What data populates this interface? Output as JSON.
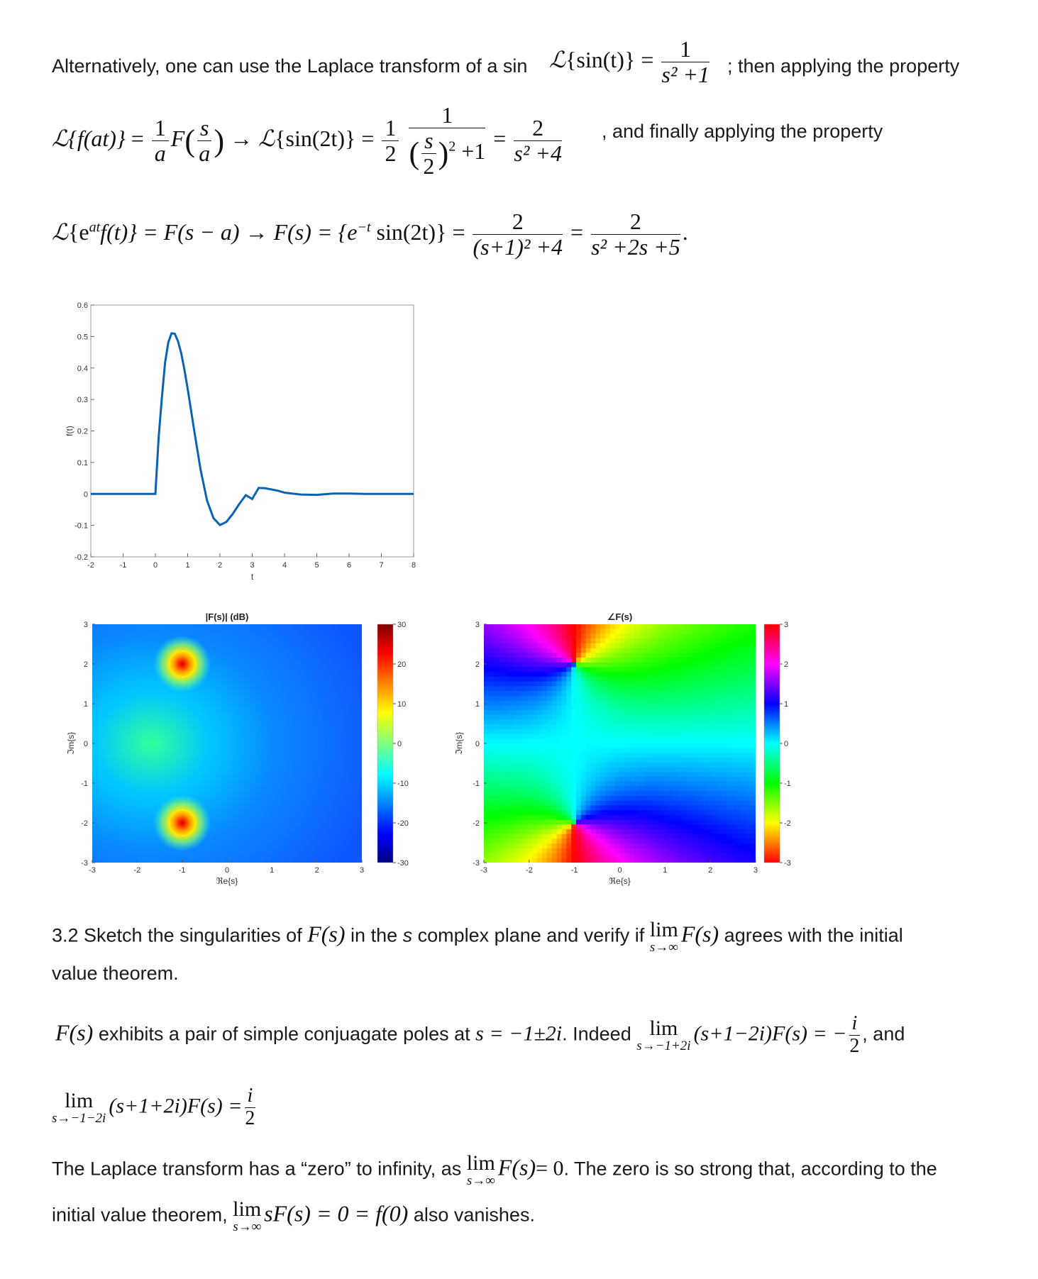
{
  "paragraph1": {
    "lead": "Alternatively, one can use the Laplace transform of a sin",
    "after": "; then applying the property",
    "after2": ", and finally applying the property"
  },
  "section": {
    "heading_a": "3.2 Sketch the singularities of",
    "heading_b": "in the",
    "heading_s": "s",
    "heading_c": "complex plane and verify if",
    "heading_d": "agrees with the initial",
    "heading_e": "value theorem."
  },
  "poles_para": {
    "a": "exhibits a pair of simple conjuagate poles at",
    "b": ". Indeed",
    "c": ", and"
  },
  "zero_para": {
    "a": "The Laplace transform has a “zero” to infinity, as",
    "b": ". The zero is so strong that, according to the",
    "c": "initial value theorem,",
    "d": "also vanishes."
  },
  "math": {
    "L": "ℒ",
    "sin_t": "{sin(t)}",
    "eq": "=",
    "one": "1",
    "two": "2",
    "s2p1": "s² +1",
    "s2p4": "s² +4",
    "fat": "{f(at)}",
    "a": "a",
    "s": "s",
    "F": "F",
    "arrow": "→",
    "sin_2t": "{sin(2t)}",
    "s_over_2_sq": "+1",
    "eat": "{e",
    "at": "at",
    "ft_close": "f(t)} = F(s − a) → F(s) = {e",
    "minus_t": "−t",
    "sin2t_close": "sin(2t)} =",
    "den1": "(s+1)² +4",
    "den2": "s² +2s +5",
    "period": ".",
    "Fs": "F(s)",
    "lim": "lim",
    "s_inf": "s→∞",
    "poles": "s = −1±2i",
    "sub_p": "s→−1+2i",
    "sub_m": "s→−1−2i",
    "lim1_expr": "(s+1−2i)F(s) = −",
    "lim2_expr": "(s+1+2i)F(s) =",
    "i": "i",
    "eq0": "= 0",
    "sF": "sF(s) = 0 = f(0)"
  },
  "chart_data": [
    {
      "type": "line",
      "title": "",
      "xlabel": "t",
      "ylabel": "f(t)",
      "xlim": [
        -2,
        8
      ],
      "ylim": [
        -0.2,
        0.6
      ],
      "xticks": [
        "-2",
        "-1",
        "0",
        "1",
        "2",
        "3",
        "4",
        "5",
        "6",
        "7",
        "8"
      ],
      "yticks": [
        "-0.2",
        "-0.1",
        "0",
        "0.1",
        "0.2",
        "0.3",
        "0.4",
        "0.5",
        "0.6"
      ],
      "series": [
        {
          "color": "#0a62b4",
          "x": [
            -2,
            0,
            0.1,
            0.2,
            0.3,
            0.4,
            0.5,
            0.6,
            0.7,
            0.8,
            0.9,
            1.0,
            1.2,
            1.4,
            1.6,
            1.8,
            2.0,
            2.2,
            2.4,
            2.6,
            2.8,
            3.0,
            3.2,
            3.4,
            3.6,
            3.8,
            4.0,
            4.5,
            5.0,
            5.5,
            6.0,
            6.5,
            7.0,
            7.5,
            8.0
          ],
          "y": [
            0,
            0,
            0.179,
            0.304,
            0.416,
            0.481,
            0.51,
            0.509,
            0.485,
            0.447,
            0.395,
            0.334,
            0.203,
            0.077,
            -0.021,
            -0.077,
            -0.099,
            -0.089,
            -0.063,
            -0.032,
            -0.004,
            -0.016,
            0.019,
            0.018,
            0.014,
            0.01,
            0.004,
            -0.002,
            -0.003,
            0.001,
            0.001,
            0.0,
            0.0,
            0.0,
            0.0
          ]
        }
      ],
      "grid": false
    },
    {
      "type": "heatmap",
      "title": "|F(s)| (dB)",
      "xlabel": "ℜe{s}",
      "ylabel": "ℑm{s}",
      "xlim": [
        -3,
        3
      ],
      "ylim": [
        -3,
        3
      ],
      "xticks": [
        "-3",
        "-2",
        "-1",
        "0",
        "1",
        "2",
        "3"
      ],
      "yticks": [
        "-3",
        "-2",
        "-1",
        "0",
        "1",
        "2",
        "3"
      ],
      "colorbar": {
        "range": [
          -30,
          30
        ],
        "ticks": [
          "30",
          "20",
          "10",
          "0",
          "-10",
          "-20",
          "-30"
        ],
        "colormap": "jet"
      },
      "poles": [
        [
          -1,
          2
        ],
        [
          -1,
          -2
        ]
      ]
    },
    {
      "type": "heatmap",
      "title": "∠F(s)",
      "xlabel": "ℜe{s}",
      "ylabel": "ℑm{s}",
      "xlim": [
        -3,
        3
      ],
      "ylim": [
        -3,
        3
      ],
      "xticks": [
        "-3",
        "-2",
        "-1",
        "0",
        "1",
        "2",
        "3"
      ],
      "yticks": [
        "-3",
        "-2",
        "-1",
        "0",
        "1",
        "2",
        "3"
      ],
      "colorbar": {
        "range": [
          -3,
          3
        ],
        "ticks": [
          "3",
          "2",
          "1",
          "0",
          "-1",
          "-2",
          "-3"
        ],
        "colormap": "hsv"
      },
      "poles": [
        [
          -1,
          2
        ],
        [
          -1,
          -2
        ]
      ]
    }
  ]
}
